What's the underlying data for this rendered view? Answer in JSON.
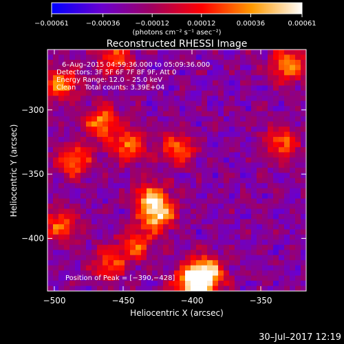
{
  "chart_data": {
    "type": "heatmap",
    "title": "Reconstructed RHESSI Image",
    "xlabel": "Heliocentric X (arcsec)",
    "ylabel": "Heliocentric Y (arcsec)",
    "xlim": [
      -505,
      -317
    ],
    "ylim": [
      -441,
      -253
    ],
    "x_ticks": [
      -500,
      -450,
      -400,
      -350
    ],
    "y_ticks": [
      -300,
      -350,
      -400
    ],
    "x_tick_labels": [
      "−500",
      "−450",
      "−400",
      "−350"
    ],
    "y_tick_labels": [
      "−300",
      "−350",
      "−400"
    ],
    "colorbar": {
      "range": [
        -0.00061,
        0.00061
      ],
      "ticks": [
        -0.00061,
        -0.00036,
        -0.00012,
        0.00012,
        0.00036,
        0.00061
      ],
      "tick_labels": [
        "−0.00061",
        "−0.00036",
        "−0.00012",
        "0.00012",
        "0.00036",
        "0.00061"
      ],
      "units": "(photons cm⁻² s⁻¹ asec⁻²)",
      "colors": [
        "#0000ff",
        "#6a00d0",
        "#a00060",
        "#ff0000",
        "#ff9a00",
        "#ffffff"
      ]
    },
    "grid": false,
    "annotations": [
      "6–Aug–2015 04:59:36.000 to 05:09:36.000",
      "Detectors: 3F 5F 6F 7F 8F 9F, Att 0",
      "Energy Range: 12.0 – 25.0 keV",
      "Clean    Total counts: 3.39E+04"
    ],
    "peak_label": "Position of Peak = [−390,−428]",
    "peak": {
      "x": -390,
      "y": -428,
      "value": 0.00061
    },
    "sources": [
      {
        "x": -390,
        "y": -428,
        "value": 0.00061
      },
      {
        "x": -400,
        "y": -435,
        "value": 0.0005
      },
      {
        "x": -425,
        "y": -382,
        "value": 0.00045
      },
      {
        "x": -430,
        "y": -368,
        "value": 0.0003
      },
      {
        "x": -465,
        "y": -310,
        "value": 0.00035
      },
      {
        "x": -445,
        "y": -328,
        "value": 0.0003
      },
      {
        "x": -410,
        "y": -330,
        "value": 0.00025
      },
      {
        "x": -495,
        "y": -280,
        "value": 0.00035
      },
      {
        "x": -485,
        "y": -340,
        "value": 0.0003
      },
      {
        "x": -495,
        "y": -390,
        "value": 0.00025
      },
      {
        "x": -330,
        "y": -265,
        "value": 0.00035
      },
      {
        "x": -335,
        "y": -325,
        "value": 0.00025
      },
      {
        "x": -455,
        "y": -260,
        "value": 0.00025
      },
      {
        "x": -460,
        "y": -420,
        "value": 0.0002
      },
      {
        "x": -440,
        "y": -405,
        "value": 0.0002
      }
    ]
  },
  "footer": {
    "timestamp": "30–Jul–2017 12:19"
  }
}
